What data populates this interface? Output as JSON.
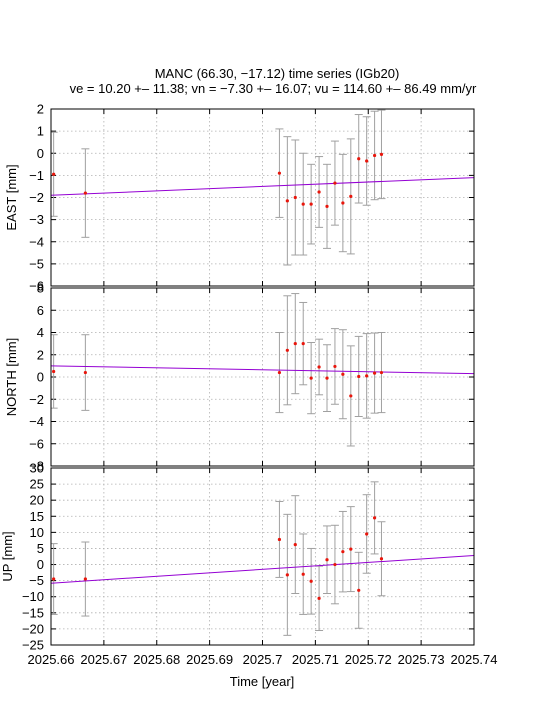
{
  "chart_data": {
    "type": "scatter",
    "title": "MANC (66.30, −17.12) time series (IGb20)",
    "subtitle": "ve = 10.20 +– 11.38; vn = −7.30 +– 16.07; vu = 114.60 +– 86.49 mm/yr",
    "xlabel": "Time [year]",
    "xlim": [
      2025.66,
      2025.74
    ],
    "xticks": [
      "2025.66",
      "2025.67",
      "2025.68",
      "2025.69",
      "2025.7",
      "2025.71",
      "2025.72",
      "2025.73",
      "2025.74"
    ],
    "grid": true,
    "panels": [
      {
        "ylabel": "EAST [mm]",
        "ylim": [
          -6,
          2
        ],
        "yticks": [
          "2",
          "1",
          "0",
          "−1",
          "−2",
          "−3",
          "−4",
          "−5",
          "−6"
        ],
        "trend": [
          [
            2025.66,
            -1.9
          ],
          [
            2025.74,
            -1.1
          ]
        ],
        "points": [
          {
            "x": 2025.6605,
            "y": -0.95,
            "err": 1.9
          },
          {
            "x": 2025.6665,
            "y": -1.8,
            "err": 2.0
          },
          {
            "x": 2025.7032,
            "y": -0.9,
            "err": 2.0
          },
          {
            "x": 2025.7047,
            "y": -2.15,
            "err": 2.9
          },
          {
            "x": 2025.7062,
            "y": -2.0,
            "err": 2.6
          },
          {
            "x": 2025.7077,
            "y": -2.3,
            "err": 2.3
          },
          {
            "x": 2025.7092,
            "y": -2.3,
            "err": 1.8
          },
          {
            "x": 2025.7107,
            "y": -1.75,
            "err": 1.6
          },
          {
            "x": 2025.7122,
            "y": -2.4,
            "err": 1.9
          },
          {
            "x": 2025.7137,
            "y": -1.35,
            "err": 1.9
          },
          {
            "x": 2025.7152,
            "y": -2.25,
            "err": 2.2
          },
          {
            "x": 2025.7167,
            "y": -1.95,
            "err": 2.6
          },
          {
            "x": 2025.7182,
            "y": -0.25,
            "err": 2.0
          },
          {
            "x": 2025.7197,
            "y": -0.35,
            "err": 2.0
          },
          {
            "x": 2025.7212,
            "y": -0.1,
            "err": 2.0
          },
          {
            "x": 2025.7225,
            "y": -0.05,
            "err": 2.0
          }
        ]
      },
      {
        "ylabel": "NORTH [mm]",
        "ylim": [
          -8,
          8
        ],
        "yticks": [
          "8",
          "6",
          "4",
          "2",
          "0",
          "−2",
          "−4",
          "−6",
          "−8"
        ],
        "trend": [
          [
            2025.66,
            1.0
          ],
          [
            2025.74,
            0.3
          ]
        ],
        "points": [
          {
            "x": 2025.6605,
            "y": 0.5,
            "err": 3.3
          },
          {
            "x": 2025.6665,
            "y": 0.4,
            "err": 3.4
          },
          {
            "x": 2025.7032,
            "y": 0.4,
            "err": 3.6
          },
          {
            "x": 2025.7047,
            "y": 2.4,
            "err": 4.9
          },
          {
            "x": 2025.7062,
            "y": 3.0,
            "err": 4.5
          },
          {
            "x": 2025.7077,
            "y": 3.0,
            "err": 3.7
          },
          {
            "x": 2025.7092,
            "y": -0.1,
            "err": 3.2
          },
          {
            "x": 2025.7107,
            "y": 0.9,
            "err": 2.5
          },
          {
            "x": 2025.7122,
            "y": -0.1,
            "err": 3.0
          },
          {
            "x": 2025.7137,
            "y": 0.95,
            "err": 3.4
          },
          {
            "x": 2025.7152,
            "y": 0.25,
            "err": 4.0
          },
          {
            "x": 2025.7167,
            "y": -1.7,
            "err": 4.5
          },
          {
            "x": 2025.7182,
            "y": 0.05,
            "err": 3.6
          },
          {
            "x": 2025.7197,
            "y": 0.1,
            "err": 3.8
          },
          {
            "x": 2025.7212,
            "y": 0.35,
            "err": 3.6
          },
          {
            "x": 2025.7225,
            "y": 0.4,
            "err": 3.6
          }
        ]
      },
      {
        "ylabel": "UP [mm]",
        "ylim": [
          -25,
          30
        ],
        "yticks": [
          "30",
          "25",
          "20",
          "15",
          "10",
          "5",
          "0",
          "−5",
          "−10",
          "−15",
          "−20",
          "−25"
        ],
        "trend": [
          [
            2025.66,
            -5.8
          ],
          [
            2025.74,
            2.8
          ]
        ],
        "points": [
          {
            "x": 2025.6605,
            "y": -4.5,
            "err": 11.0
          },
          {
            "x": 2025.6665,
            "y": -4.5,
            "err": 11.5
          },
          {
            "x": 2025.7032,
            "y": 7.8,
            "err": 11.8
          },
          {
            "x": 2025.7047,
            "y": -3.2,
            "err": 18.8
          },
          {
            "x": 2025.7062,
            "y": 6.2,
            "err": 15.2
          },
          {
            "x": 2025.7077,
            "y": -3.0,
            "err": 12.5
          },
          {
            "x": 2025.7092,
            "y": -5.2,
            "err": 10.2
          },
          {
            "x": 2025.7107,
            "y": -10.5,
            "err": 10.0
          },
          {
            "x": 2025.7122,
            "y": 1.5,
            "err": 10.5
          },
          {
            "x": 2025.7137,
            "y": 0.0,
            "err": 12.2
          },
          {
            "x": 2025.7152,
            "y": 4.0,
            "err": 12.5
          },
          {
            "x": 2025.7167,
            "y": 4.8,
            "err": 13.2
          },
          {
            "x": 2025.7182,
            "y": -8.0,
            "err": 11.8
          },
          {
            "x": 2025.7197,
            "y": 9.5,
            "err": 12.2
          },
          {
            "x": 2025.7212,
            "y": 14.5,
            "err": 11.2
          },
          {
            "x": 2025.7225,
            "y": 1.8,
            "err": 11.5
          }
        ]
      }
    ],
    "colors": {
      "points": "#e8160c",
      "errorbars": "#a0a0a0",
      "trend": "#9400d3"
    }
  }
}
